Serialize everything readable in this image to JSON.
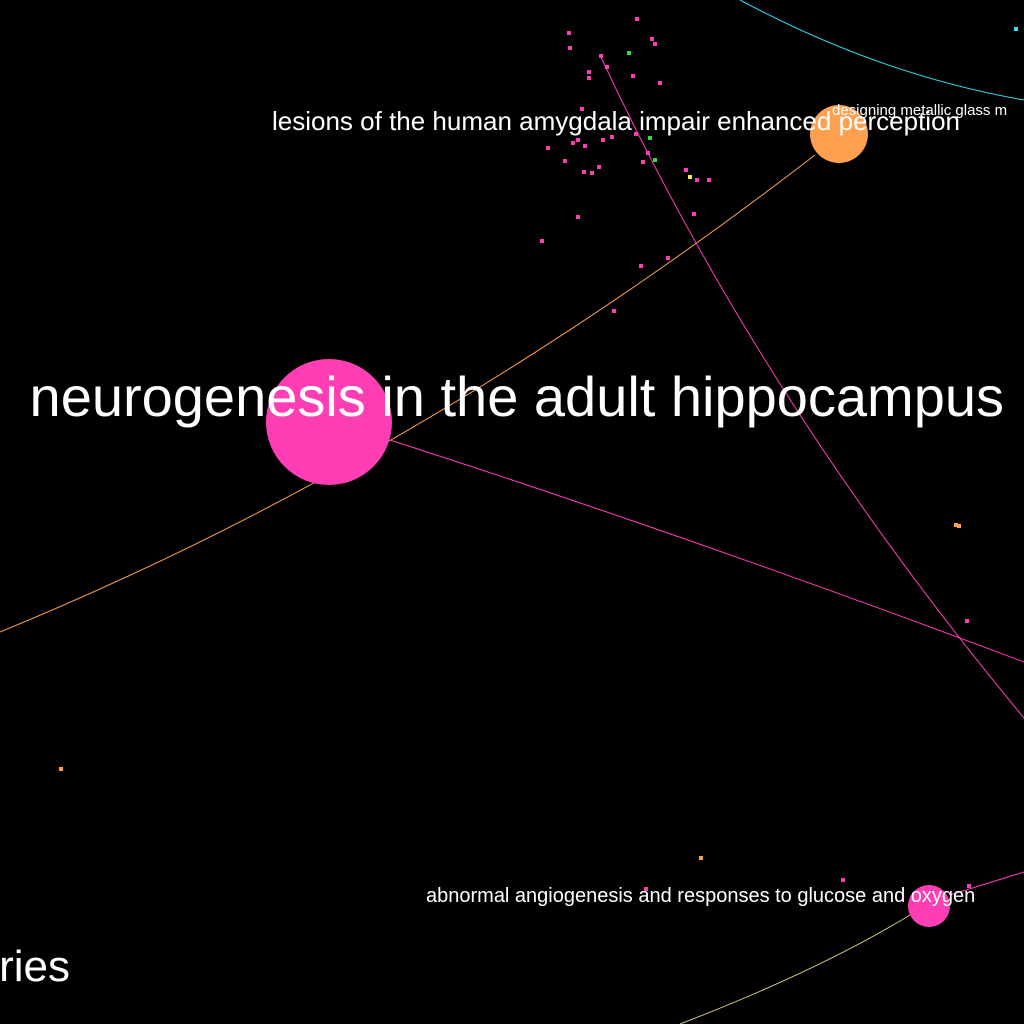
{
  "colors": {
    "background": "#000000",
    "pink": "#ff3eb5",
    "orange": "#ff9f50",
    "green": "#33dd33",
    "yellow": "#ffee44",
    "cyan": "#33e0f0",
    "label": "#ffffff"
  },
  "labels": {
    "neurogenesis": "neurogenesis in the adult hippocampus",
    "amygdala": "lesions of the human amygdala impair enhanced perception",
    "metallic_glass": "designing metallic glass m",
    "angiogenesis": "abnormal angiogenesis and responses to glucose and oxygen",
    "series": "ries"
  }
}
